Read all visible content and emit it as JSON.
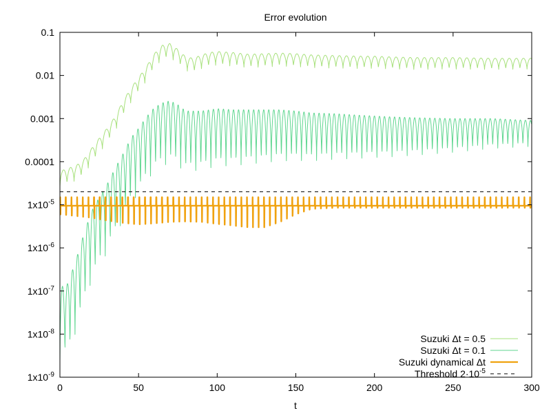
{
  "chart_data": {
    "type": "line",
    "title": "Error evolution",
    "xlabel": "t",
    "ylabel": "",
    "xlim": [
      0,
      300
    ],
    "ylim": [
      1e-09,
      0.1
    ],
    "yscale": "log",
    "grid": false,
    "legend_position": "bottom-right",
    "x_ticks": [
      0,
      50,
      100,
      150,
      200,
      250,
      300
    ],
    "x_tick_labels": [
      "0",
      "50",
      "100",
      "150",
      "200",
      "250",
      "300"
    ],
    "y_ticks": [
      1e-09,
      1e-08,
      1e-07,
      1e-06,
      1e-05,
      0.0001,
      0.001,
      0.01,
      0.1
    ],
    "y_tick_labels": [
      "1x10-9",
      "1x10-8",
      "1x10-7",
      "1x10-6",
      "1x10-5",
      "0.0001",
      "0.001",
      "0.01",
      "0.1"
    ],
    "series": [
      {
        "name": "Suzuki Δt = 0.5",
        "color": "#a6e07a",
        "line_width": 1,
        "oscillating": true,
        "period": 4.5,
        "dip_depth_log10": [
          0.35,
          0.25
        ],
        "envelope": {
          "x": [
            0,
            5,
            10,
            15,
            20,
            25,
            30,
            35,
            40,
            45,
            50,
            55,
            60,
            65,
            70,
            75,
            80,
            85,
            90,
            95,
            100,
            110,
            120,
            130,
            140,
            150,
            160,
            175,
            190,
            200,
            210,
            225,
            250,
            275,
            300
          ],
          "y": [
            6e-05,
            7e-05,
            8e-05,
            0.00011,
            0.0002,
            0.00035,
            0.0006,
            0.0011,
            0.0025,
            0.005,
            0.009,
            0.016,
            0.032,
            0.05,
            0.055,
            0.04,
            0.027,
            0.025,
            0.03,
            0.034,
            0.036,
            0.034,
            0.031,
            0.032,
            0.033,
            0.032,
            0.03,
            0.029,
            0.028,
            0.028,
            0.027,
            0.026,
            0.026,
            0.025,
            0.025
          ]
        }
      },
      {
        "name": "Suzuki Δt = 0.1",
        "color": "#5ed68f",
        "line_width": 1,
        "oscillating": true,
        "period": 3.2,
        "dip_depth_log10": [
          1.7,
          0.6
        ],
        "envelope": {
          "x": [
            0,
            5,
            10,
            15,
            20,
            25,
            30,
            35,
            40,
            45,
            50,
            55,
            60,
            65,
            70,
            75,
            80,
            90,
            100,
            110,
            120,
            130,
            140,
            150,
            160,
            175,
            190,
            200,
            210,
            225,
            250,
            275,
            300
          ],
          "y": [
            1.2e-07,
            1.5e-07,
            5e-07,
            2e-06,
            7e-06,
            1.5e-05,
            3e-05,
            7e-05,
            0.00015,
            0.00035,
            0.0006,
            0.0011,
            0.0018,
            0.0023,
            0.0026,
            0.0021,
            0.0015,
            0.0015,
            0.0017,
            0.0016,
            0.0016,
            0.0016,
            0.0016,
            0.0015,
            0.00135,
            0.0013,
            0.0012,
            0.00115,
            0.0011,
            0.00105,
            0.001,
            0.001,
            0.0009
          ]
        }
      },
      {
        "name": "Suzuki dynamical Δt",
        "color": "#f0a20f",
        "line_width": 2.2,
        "oscillating": true,
        "period": 3.6,
        "base": 9.5e-06,
        "spike_high": 1.5e-05,
        "dip_envelope": {
          "x": [
            0,
            10,
            20,
            30,
            40,
            50,
            60,
            70,
            80,
            90,
            100,
            110,
            120,
            130,
            140,
            150,
            160,
            175,
            200,
            250,
            300
          ],
          "y": [
            6e-06,
            5.5e-06,
            5e-06,
            4.3e-06,
            3.8e-06,
            3.5e-06,
            3.7e-06,
            4e-06,
            4.1e-06,
            4e-06,
            3.6e-06,
            3.3e-06,
            3e-06,
            3e-06,
            4e-06,
            6e-06,
            8e-06,
            8.5e-06,
            8.5e-06,
            8.5e-06,
            8.5e-06
          ]
        }
      },
      {
        "name": "Threshold 2·10-5",
        "color": "#000000",
        "line_width": 1,
        "dashed": true,
        "x": [
          0,
          300
        ],
        "y": [
          2e-05,
          2e-05
        ]
      }
    ]
  }
}
